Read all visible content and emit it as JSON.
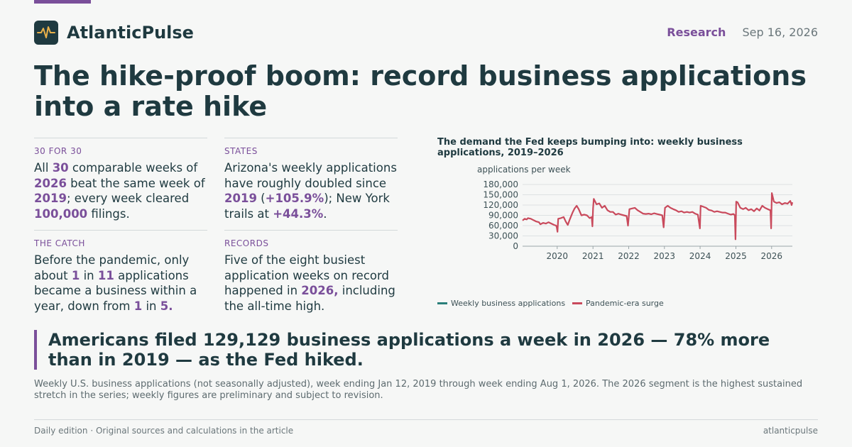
{
  "brand": {
    "name": "AtlanticPulse",
    "section": "Research",
    "date": "Sep 16, 2026",
    "logo_icon": "pulse-icon",
    "accent": "#7a4f9a",
    "ink": "#1f3a40"
  },
  "headline": "The hike-proof boom: record business applications into a rate hike",
  "stats": [
    {
      "label": "30 FOR 30",
      "parts": [
        {
          "t": "All "
        },
        {
          "t": "30",
          "b": true
        },
        {
          "t": " comparable weeks of "
        },
        {
          "t": "2026",
          "b": true
        },
        {
          "t": " beat the same week of "
        },
        {
          "t": "2019",
          "b": true
        },
        {
          "t": "; every week cleared "
        },
        {
          "t": "100,000",
          "b": true
        },
        {
          "t": " filings."
        }
      ]
    },
    {
      "label": "STATES",
      "parts": [
        {
          "t": "Arizona's weekly applications have roughly doubled since "
        },
        {
          "t": "2019",
          "b": true
        },
        {
          "t": " ("
        },
        {
          "t": "+105.9%",
          "b": true
        },
        {
          "t": "); New York trails at "
        },
        {
          "t": "+44.3%",
          "b": true
        },
        {
          "t": "."
        }
      ]
    },
    {
      "label": "THE CATCH",
      "parts": [
        {
          "t": "Before the pandemic, only about "
        },
        {
          "t": "1",
          "b": true
        },
        {
          "t": " in "
        },
        {
          "t": "11",
          "b": true
        },
        {
          "t": " applications became a business within a year, down from "
        },
        {
          "t": "1",
          "b": true
        },
        {
          "t": " in "
        },
        {
          "t": "5.",
          "b": true
        }
      ]
    },
    {
      "label": "RECORDS",
      "parts": [
        {
          "t": "Five of the eight busiest application weeks on record happened in "
        },
        {
          "t": "2026,",
          "b": true
        },
        {
          "t": " including the all-time high."
        }
      ]
    }
  ],
  "chart_data": {
    "type": "line",
    "title": "The demand the Fed keeps bumping into: weekly business applications, 2019–2026",
    "ylabel": "applications per week",
    "xlabel": "",
    "ylim": [
      0,
      180000
    ],
    "xlim": [
      "2019-01-12",
      "2026-08-01"
    ],
    "yticks": [
      0,
      30000,
      60000,
      90000,
      120000,
      150000,
      180000
    ],
    "ytick_labels": [
      "0",
      "30,000",
      "60,000",
      "90,000",
      "120,000",
      "150,000",
      "180,000"
    ],
    "xtick_labels": [
      "2020",
      "2021",
      "2022",
      "2023",
      "2024",
      "2025",
      "2026"
    ],
    "grid": "horizontal",
    "legend": "bottom",
    "series": [
      {
        "name": "Weekly business applications",
        "color": "#2a7f7a",
        "points": []
      },
      {
        "name": "Pandemic-era surge",
        "color": "#c94a5c",
        "points": [
          [
            "2019-01-12",
            75000
          ],
          [
            "2019-02-02",
            80000
          ],
          [
            "2019-02-23",
            78000
          ],
          [
            "2019-03-09",
            82000
          ],
          [
            "2019-04-06",
            80000
          ],
          [
            "2019-05-04",
            76000
          ],
          [
            "2019-06-01",
            72000
          ],
          [
            "2019-06-29",
            70000
          ],
          [
            "2019-07-13",
            64000
          ],
          [
            "2019-08-10",
            68000
          ],
          [
            "2019-09-07",
            66000
          ],
          [
            "2019-10-05",
            70000
          ],
          [
            "2019-11-02",
            66000
          ],
          [
            "2019-11-30",
            62000
          ],
          [
            "2019-12-21",
            60000
          ],
          [
            "2019-12-28",
            55000
          ],
          [
            "2020-01-04",
            42000
          ],
          [
            "2020-01-11",
            80000
          ],
          [
            "2020-02-08",
            82000
          ],
          [
            "2020-03-07",
            85000
          ],
          [
            "2020-03-28",
            72000
          ],
          [
            "2020-04-18",
            62000
          ],
          [
            "2020-05-09",
            78000
          ],
          [
            "2020-06-06",
            98000
          ],
          [
            "2020-06-27",
            110000
          ],
          [
            "2020-07-18",
            118000
          ],
          [
            "2020-08-08",
            108000
          ],
          [
            "2020-09-05",
            90000
          ],
          [
            "2020-10-03",
            92000
          ],
          [
            "2020-10-31",
            90000
          ],
          [
            "2020-11-28",
            82000
          ],
          [
            "2020-12-19",
            85000
          ],
          [
            "2020-12-26",
            58000
          ],
          [
            "2021-01-02",
            110000
          ],
          [
            "2021-01-09",
            138000
          ],
          [
            "2021-02-06",
            122000
          ],
          [
            "2021-03-06",
            125000
          ],
          [
            "2021-04-03",
            112000
          ],
          [
            "2021-05-01",
            118000
          ],
          [
            "2021-05-29",
            105000
          ],
          [
            "2021-06-26",
            100000
          ],
          [
            "2021-07-24",
            100000
          ],
          [
            "2021-08-21",
            92000
          ],
          [
            "2021-09-18",
            95000
          ],
          [
            "2021-10-16",
            92000
          ],
          [
            "2021-11-13",
            90000
          ],
          [
            "2021-12-11",
            88000
          ],
          [
            "2021-12-25",
            60000
          ],
          [
            "2022-01-08",
            108000
          ],
          [
            "2022-02-05",
            110000
          ],
          [
            "2022-03-05",
            112000
          ],
          [
            "2022-04-02",
            105000
          ],
          [
            "2022-04-30",
            100000
          ],
          [
            "2022-05-28",
            95000
          ],
          [
            "2022-06-25",
            94000
          ],
          [
            "2022-07-23",
            95000
          ],
          [
            "2022-08-20",
            93000
          ],
          [
            "2022-09-17",
            96000
          ],
          [
            "2022-10-15",
            94000
          ],
          [
            "2022-11-12",
            92000
          ],
          [
            "2022-12-10",
            90000
          ],
          [
            "2022-12-24",
            55000
          ],
          [
            "2023-01-07",
            112000
          ],
          [
            "2023-02-04",
            118000
          ],
          [
            "2023-03-04",
            112000
          ],
          [
            "2023-04-01",
            108000
          ],
          [
            "2023-04-29",
            105000
          ],
          [
            "2023-05-27",
            100000
          ],
          [
            "2023-06-24",
            102000
          ],
          [
            "2023-07-22",
            98000
          ],
          [
            "2023-08-19",
            100000
          ],
          [
            "2023-09-16",
            98000
          ],
          [
            "2023-10-14",
            100000
          ],
          [
            "2023-11-11",
            95000
          ],
          [
            "2023-12-09",
            92000
          ],
          [
            "2023-12-30",
            52000
          ],
          [
            "2024-01-06",
            118000
          ],
          [
            "2024-02-03",
            115000
          ],
          [
            "2024-03-02",
            112000
          ],
          [
            "2024-03-30",
            106000
          ],
          [
            "2024-04-27",
            104000
          ],
          [
            "2024-05-25",
            100000
          ],
          [
            "2024-06-22",
            102000
          ],
          [
            "2024-07-20",
            100000
          ],
          [
            "2024-08-17",
            98000
          ],
          [
            "2024-09-14",
            98000
          ],
          [
            "2024-10-12",
            95000
          ],
          [
            "2024-11-09",
            92000
          ],
          [
            "2024-12-07",
            94000
          ],
          [
            "2024-12-21",
            90000
          ],
          [
            "2024-12-28",
            20000
          ],
          [
            "2025-01-04",
            130000
          ],
          [
            "2025-01-18",
            128000
          ],
          [
            "2025-02-15",
            112000
          ],
          [
            "2025-03-15",
            108000
          ],
          [
            "2025-04-12",
            112000
          ],
          [
            "2025-05-10",
            105000
          ],
          [
            "2025-06-07",
            108000
          ],
          [
            "2025-07-05",
            102000
          ],
          [
            "2025-08-02",
            110000
          ],
          [
            "2025-08-30",
            104000
          ],
          [
            "2025-09-27",
            118000
          ],
          [
            "2025-10-25",
            112000
          ],
          [
            "2025-11-22",
            108000
          ],
          [
            "2025-12-20",
            105000
          ],
          [
            "2025-12-27",
            52000
          ],
          [
            "2026-01-03",
            155000
          ],
          [
            "2026-01-24",
            130000
          ],
          [
            "2026-02-21",
            126000
          ],
          [
            "2026-03-21",
            128000
          ],
          [
            "2026-04-18",
            122000
          ],
          [
            "2026-05-16",
            126000
          ],
          [
            "2026-06-13",
            124000
          ],
          [
            "2026-07-11",
            132000
          ],
          [
            "2026-07-25",
            120000
          ],
          [
            "2026-08-01",
            128000
          ]
        ]
      }
    ]
  },
  "callout": "Americans filed 129,129 business applications a week in 2026 — 78% more than in 2019 — as the Fed hiked.",
  "note": "Weekly U.S. business applications (not seasonally adjusted), week ending Jan 12, 2019 through week ending Aug 1, 2026. The 2026 segment is the highest sustained stretch in the series; weekly figures are preliminary and subject to revision.",
  "footer": {
    "left": "Daily edition · Original sources and calculations in the article",
    "right": "atlanticpulse"
  }
}
